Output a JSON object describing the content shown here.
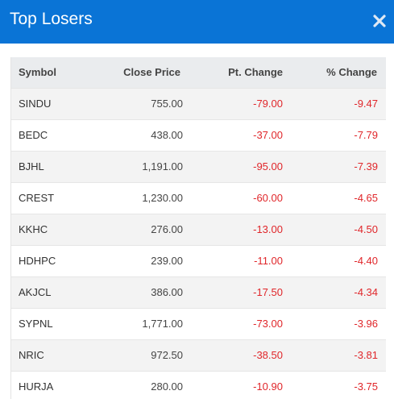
{
  "modal": {
    "title": "Top Losers",
    "close_icon": "close-icon"
  },
  "colors": {
    "header_bg": "#0a74d6",
    "negative": "#e0262a"
  },
  "table": {
    "headers": {
      "symbol": "Symbol",
      "close_price": "Close Price",
      "pt_change": "Pt. Change",
      "pct_change": "% Change"
    },
    "rows": [
      {
        "symbol": "SINDU",
        "close_price": "755.00",
        "pt_change": "-79.00",
        "pct_change": "-9.47"
      },
      {
        "symbol": "BEDC",
        "close_price": "438.00",
        "pt_change": "-37.00",
        "pct_change": "-7.79"
      },
      {
        "symbol": "BJHL",
        "close_price": "1,191.00",
        "pt_change": "-95.00",
        "pct_change": "-7.39"
      },
      {
        "symbol": "CREST",
        "close_price": "1,230.00",
        "pt_change": "-60.00",
        "pct_change": "-4.65"
      },
      {
        "symbol": "KKHC",
        "close_price": "276.00",
        "pt_change": "-13.00",
        "pct_change": "-4.50"
      },
      {
        "symbol": "HDHPC",
        "close_price": "239.00",
        "pt_change": "-11.00",
        "pct_change": "-4.40"
      },
      {
        "symbol": "AKJCL",
        "close_price": "386.00",
        "pt_change": "-17.50",
        "pct_change": "-4.34"
      },
      {
        "symbol": "SYPNL",
        "close_price": "1,771.00",
        "pt_change": "-73.00",
        "pct_change": "-3.96"
      },
      {
        "symbol": "NRIC",
        "close_price": "972.50",
        "pt_change": "-38.50",
        "pct_change": "-3.81"
      },
      {
        "symbol": "HURJA",
        "close_price": "280.00",
        "pt_change": "-10.90",
        "pct_change": "-3.75"
      }
    ]
  }
}
